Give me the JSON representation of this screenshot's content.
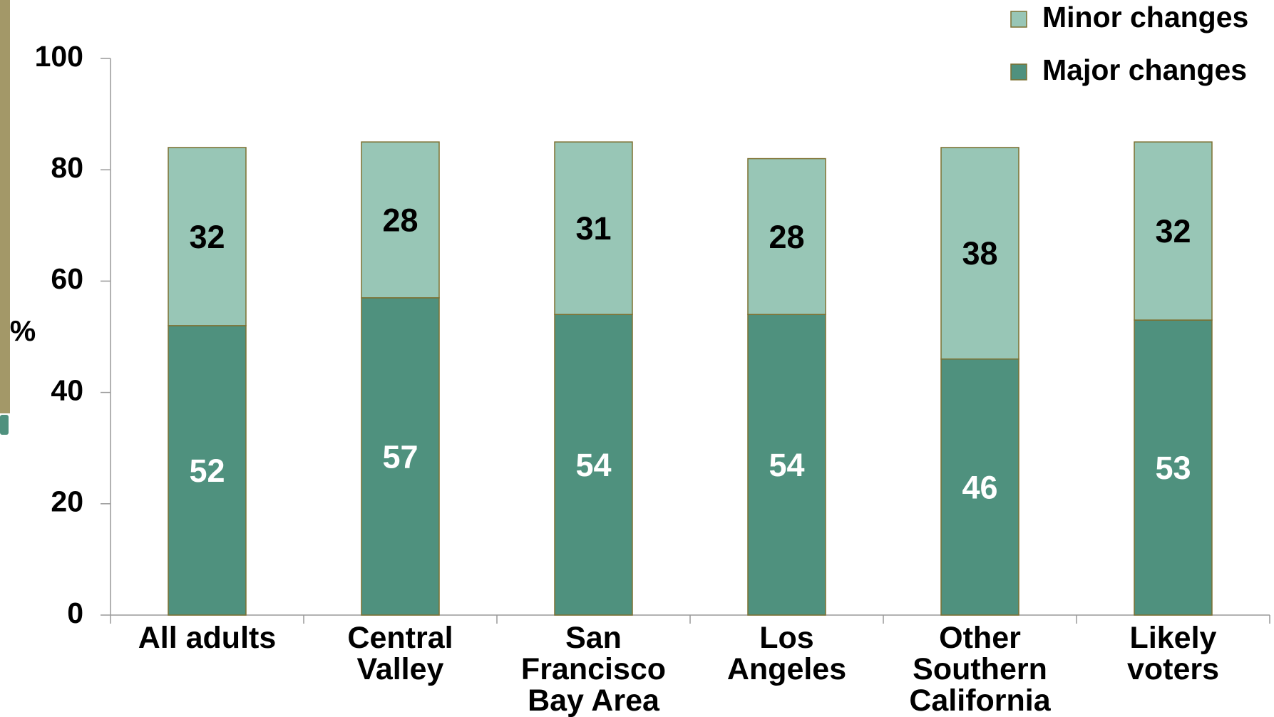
{
  "chart_data": {
    "type": "stacked-bar",
    "y_label": "%",
    "categories": [
      "All adults",
      "Central Valley",
      "San Francisco Bay Area",
      "Los Angeles",
      "Other Southern California",
      "Likely voters"
    ],
    "series": [
      {
        "name": "Major changes",
        "color": "#4f917e",
        "label_color": "#ffffff",
        "values": [
          52,
          57,
          54,
          54,
          46,
          53
        ]
      },
      {
        "name": "Minor changes",
        "color": "#98c6b6",
        "label_color": "#000000",
        "values": [
          32,
          28,
          31,
          28,
          38,
          32
        ]
      }
    ],
    "ylim": [
      0,
      100
    ],
    "yticks": [
      0,
      20,
      40,
      60,
      80,
      100
    ],
    "legend": "top-right"
  }
}
